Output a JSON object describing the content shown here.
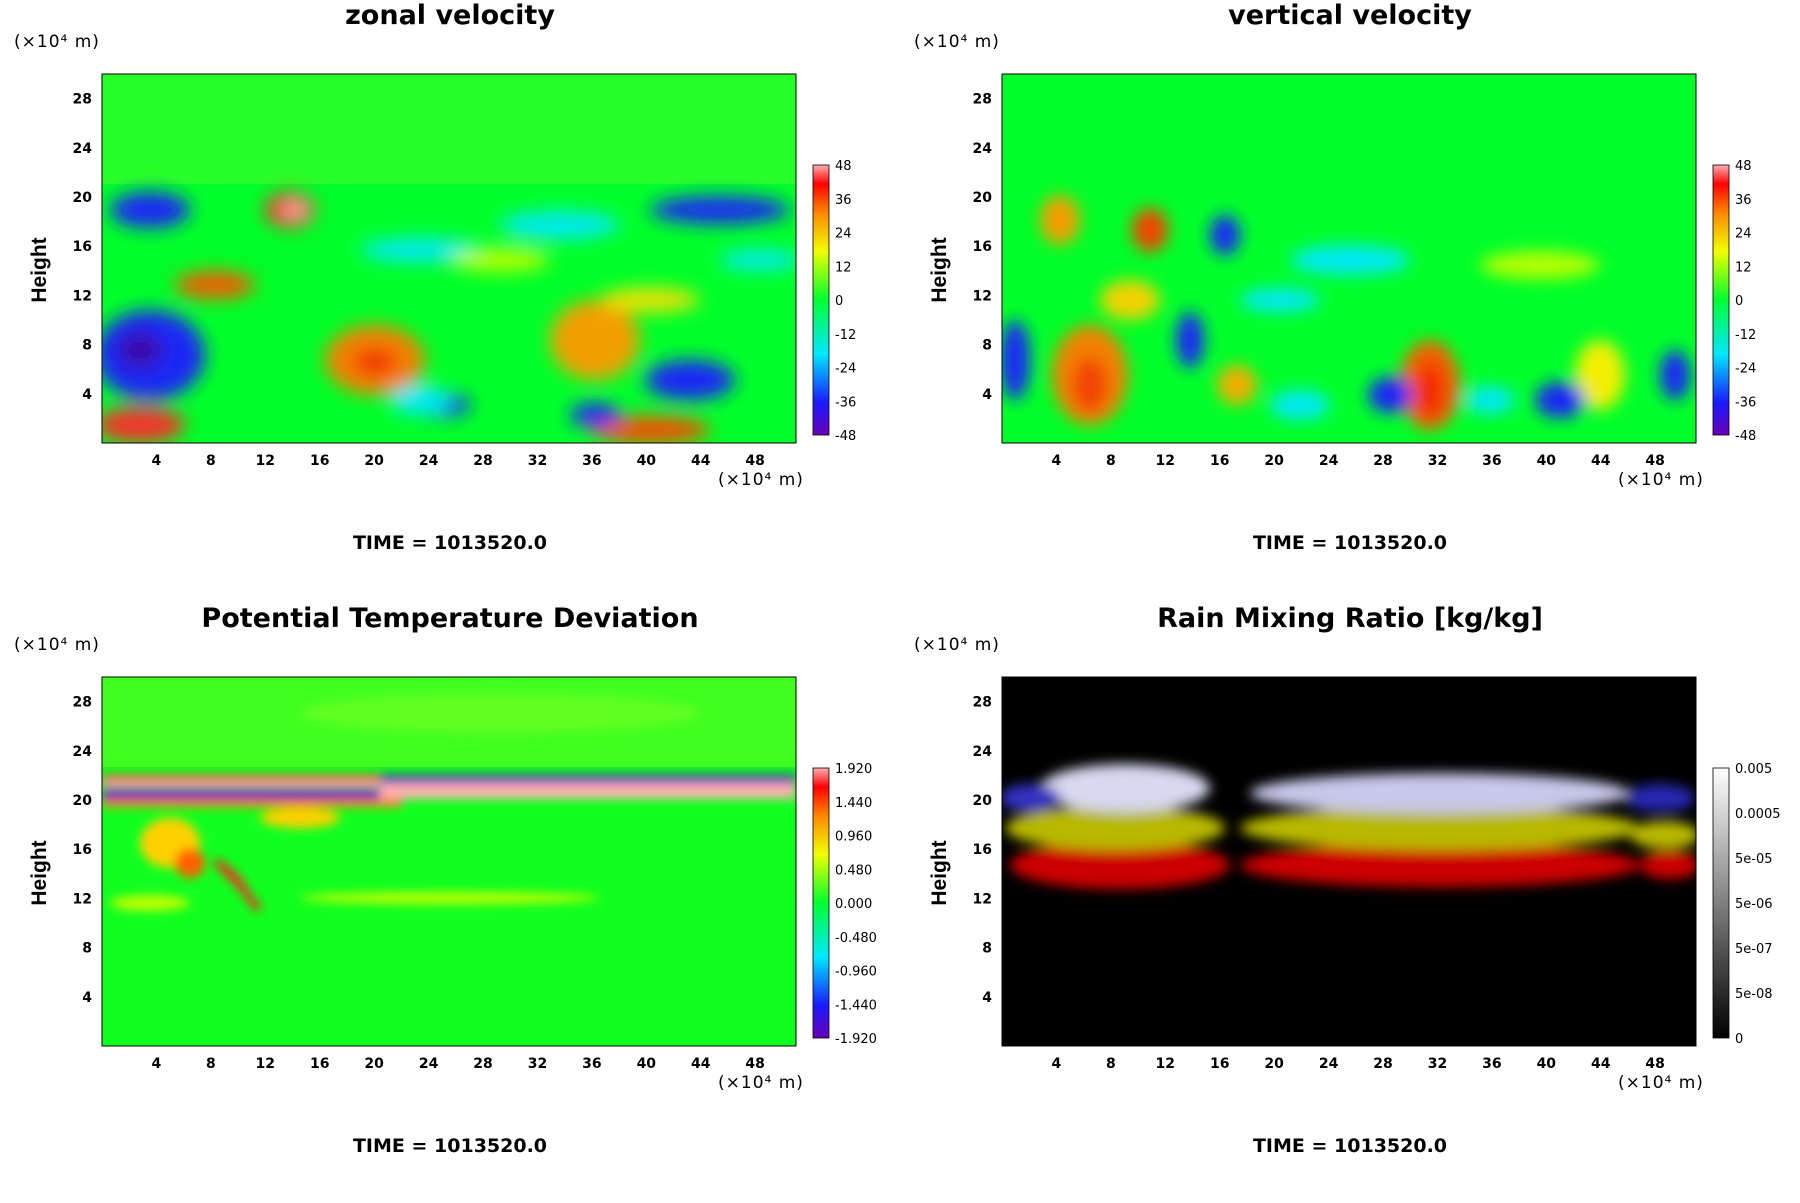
{
  "chart_data": [
    {
      "type": "heatmap",
      "title": "zonal velocity",
      "xlabel": "",
      "ylabel": "Height",
      "x_unit": "(×10⁴ m)",
      "y_unit": "(×10⁴ m)",
      "x_ticks": [
        "4",
        "8",
        "12",
        "16",
        "20",
        "24",
        "28",
        "32",
        "36",
        "40",
        "44",
        "48"
      ],
      "y_ticks": [
        "4",
        "8",
        "12",
        "16",
        "20",
        "24",
        "28"
      ],
      "xlim": [
        0,
        51
      ],
      "ylim": [
        0,
        30
      ],
      "colorbar_ticks": [
        "48",
        "36",
        "24",
        "12",
        "0",
        "-12",
        "-24",
        "-36",
        "-48"
      ],
      "colorbar_range": [
        -48,
        48
      ],
      "colormap": "rainbow",
      "footer": "TIME = 1013520.0"
    },
    {
      "type": "heatmap",
      "title": "vertical velocity",
      "xlabel": "",
      "ylabel": "Height",
      "x_unit": "(×10⁴ m)",
      "y_unit": "(×10⁴ m)",
      "x_ticks": [
        "4",
        "8",
        "12",
        "16",
        "20",
        "24",
        "28",
        "32",
        "36",
        "40",
        "44",
        "48"
      ],
      "y_ticks": [
        "4",
        "8",
        "12",
        "16",
        "20",
        "24",
        "28"
      ],
      "xlim": [
        0,
        51
      ],
      "ylim": [
        0,
        30
      ],
      "colorbar_ticks": [
        "48",
        "36",
        "24",
        "12",
        "0",
        "-12",
        "-24",
        "-36",
        "-48"
      ],
      "colorbar_range": [
        -48,
        48
      ],
      "colormap": "rainbow",
      "footer": "TIME = 1013520.0"
    },
    {
      "type": "heatmap",
      "title": "Potential Temperature Deviation",
      "xlabel": "",
      "ylabel": "Height",
      "x_unit": "(×10⁴ m)",
      "y_unit": "(×10⁴ m)",
      "x_ticks": [
        "4",
        "8",
        "12",
        "16",
        "20",
        "24",
        "28",
        "32",
        "36",
        "40",
        "44",
        "48"
      ],
      "y_ticks": [
        "4",
        "8",
        "12",
        "16",
        "20",
        "24",
        "28"
      ],
      "xlim": [
        0,
        51
      ],
      "ylim": [
        0,
        30
      ],
      "colorbar_ticks": [
        "1.920",
        "1.440",
        "0.960",
        "0.480",
        "0.000",
        "-0.480",
        "-0.960",
        "-1.440",
        "-1.920"
      ],
      "colorbar_range": [
        -1.92,
        1.92
      ],
      "colormap": "rainbow",
      "footer": "TIME = 1013520.0"
    },
    {
      "type": "heatmap",
      "title": "Rain Mixing Ratio [kg/kg]",
      "xlabel": "",
      "ylabel": "Height",
      "x_unit": "(×10⁴ m)",
      "y_unit": "(×10⁴ m)",
      "x_ticks": [
        "4",
        "8",
        "12",
        "16",
        "20",
        "24",
        "28",
        "32",
        "36",
        "40",
        "44",
        "48"
      ],
      "y_ticks": [
        "4",
        "8",
        "12",
        "16",
        "20",
        "24",
        "28"
      ],
      "xlim": [
        0,
        51
      ],
      "ylim": [
        0,
        30
      ],
      "colorbar_ticks": [
        "0.005",
        "0.0005",
        "5e-05",
        "5e-06",
        "5e-07",
        "5e-08",
        "0"
      ],
      "colormap": "grayscale",
      "footer": "TIME = 1013520.0"
    }
  ],
  "colors": {
    "background_field": "#00ff2a",
    "rain_background": "#000000"
  }
}
